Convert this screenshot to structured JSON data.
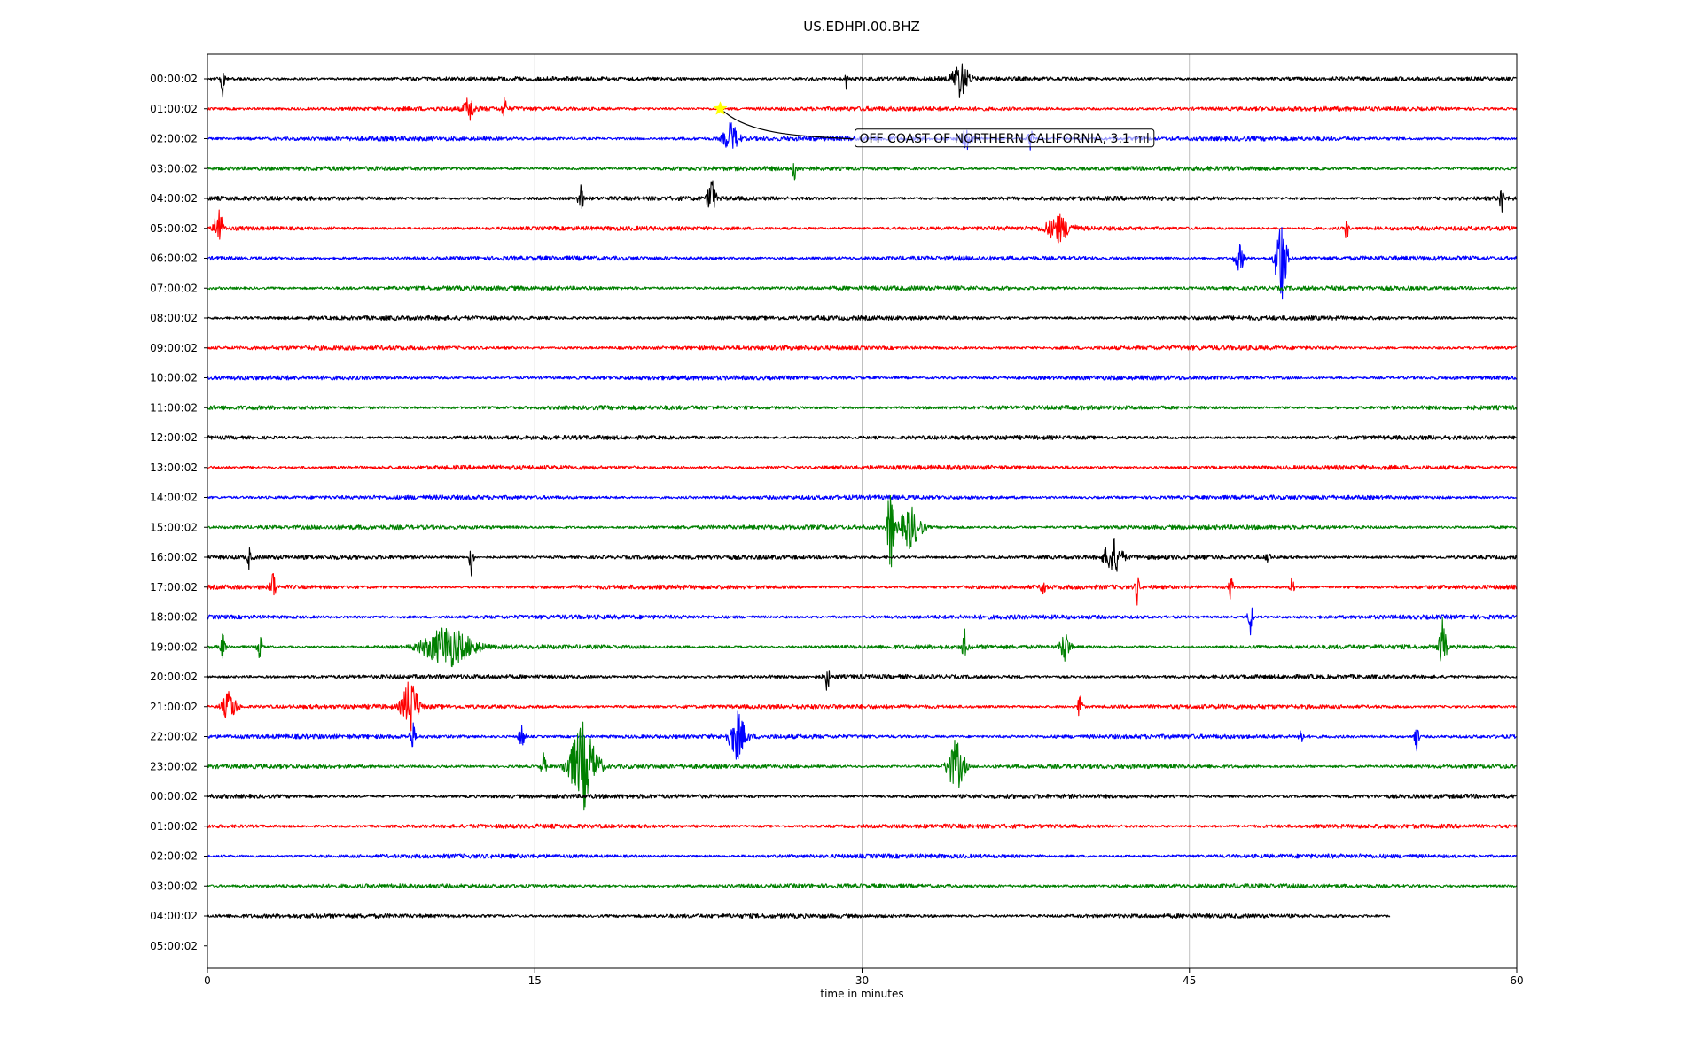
{
  "chart_data": {
    "type": "line",
    "title": "US.EDHPI.00.BHZ",
    "xlabel": "time in minutes",
    "ylabel": "",
    "xlim": [
      0,
      60
    ],
    "x_ticks": [
      0,
      15,
      30,
      45,
      60
    ],
    "grid": "vertical",
    "row_labels": [
      "00:00:02",
      "01:00:02",
      "02:00:02",
      "03:00:02",
      "04:00:02",
      "05:00:02",
      "06:00:02",
      "07:00:02",
      "08:00:02",
      "09:00:02",
      "10:00:02",
      "11:00:02",
      "12:00:02",
      "13:00:02",
      "14:00:02",
      "15:00:02",
      "16:00:02",
      "17:00:02",
      "18:00:02",
      "19:00:02",
      "20:00:02",
      "21:00:02",
      "22:00:02",
      "23:00:02",
      "00:00:02",
      "01:00:02",
      "02:00:02",
      "03:00:02",
      "04:00:02",
      "05:00:02"
    ],
    "trace_colors": [
      "#000000",
      "#ff0000",
      "#0000ff",
      "#008000"
    ],
    "trace_end_minutes": [
      60,
      60,
      60,
      60,
      60,
      60,
      60,
      60,
      60,
      60,
      60,
      60,
      60,
      60,
      60,
      60,
      60,
      60,
      60,
      60,
      60,
      60,
      60,
      60,
      60,
      60,
      60,
      60,
      54.2,
      0
    ],
    "events": [
      {
        "row": 0,
        "minute": 0.7,
        "amp": 0.7,
        "dur": 0.3
      },
      {
        "row": 0,
        "minute": 29.3,
        "amp": 0.6,
        "dur": 0.2
      },
      {
        "row": 0,
        "minute": 34.5,
        "amp": 0.7,
        "dur": 1.3
      },
      {
        "row": 1,
        "minute": 12.0,
        "amp": 0.5,
        "dur": 0.8
      },
      {
        "row": 1,
        "minute": 13.6,
        "amp": 0.6,
        "dur": 0.3
      },
      {
        "row": 2,
        "minute": 24.0,
        "amp": 0.6,
        "dur": 1.2
      },
      {
        "row": 2,
        "minute": 34.8,
        "amp": 0.4,
        "dur": 1.0
      },
      {
        "row": 2,
        "minute": 37.7,
        "amp": 0.5,
        "dur": 0.4
      },
      {
        "row": 3,
        "minute": 26.9,
        "amp": 0.5,
        "dur": 0.3
      },
      {
        "row": 4,
        "minute": 17.1,
        "amp": 0.7,
        "dur": 0.4
      },
      {
        "row": 4,
        "minute": 23.1,
        "amp": 0.9,
        "dur": 0.6
      },
      {
        "row": 4,
        "minute": 59.3,
        "amp": 0.7,
        "dur": 0.3
      },
      {
        "row": 5,
        "minute": 0.5,
        "amp": 1.0,
        "dur": 0.6
      },
      {
        "row": 5,
        "minute": 39.0,
        "amp": 0.5,
        "dur": 2.0
      },
      {
        "row": 5,
        "minute": 52.2,
        "amp": 0.5,
        "dur": 0.3
      },
      {
        "row": 6,
        "minute": 47.3,
        "amp": 0.5,
        "dur": 0.8
      },
      {
        "row": 6,
        "minute": 49.2,
        "amp": 1.9,
        "dur": 0.9
      },
      {
        "row": 15,
        "minute": 31.3,
        "amp": 1.9,
        "dur": 0.5
      },
      {
        "row": 15,
        "minute": 32.2,
        "amp": 0.8,
        "dur": 1.8
      },
      {
        "row": 16,
        "minute": 1.9,
        "amp": 0.4,
        "dur": 0.3
      },
      {
        "row": 16,
        "minute": 12.1,
        "amp": 0.9,
        "dur": 0.3
      },
      {
        "row": 16,
        "minute": 41.5,
        "amp": 0.7,
        "dur": 1.4
      },
      {
        "row": 16,
        "minute": 48.6,
        "amp": 0.4,
        "dur": 0.3
      },
      {
        "row": 17,
        "minute": 3.0,
        "amp": 0.7,
        "dur": 0.4
      },
      {
        "row": 17,
        "minute": 38.3,
        "amp": 0.6,
        "dur": 0.3
      },
      {
        "row": 17,
        "minute": 42.6,
        "amp": 0.7,
        "dur": 0.3
      },
      {
        "row": 17,
        "minute": 46.9,
        "amp": 0.6,
        "dur": 0.3
      },
      {
        "row": 17,
        "minute": 49.7,
        "amp": 0.5,
        "dur": 0.3
      },
      {
        "row": 18,
        "minute": 47.8,
        "amp": 0.7,
        "dur": 0.4
      },
      {
        "row": 19,
        "minute": 0.7,
        "amp": 0.5,
        "dur": 0.4
      },
      {
        "row": 19,
        "minute": 2.4,
        "amp": 0.6,
        "dur": 0.4
      },
      {
        "row": 19,
        "minute": 11.0,
        "amp": 0.8,
        "dur": 4.0
      },
      {
        "row": 19,
        "minute": 34.7,
        "amp": 0.6,
        "dur": 0.4
      },
      {
        "row": 19,
        "minute": 39.3,
        "amp": 0.6,
        "dur": 0.8
      },
      {
        "row": 19,
        "minute": 56.6,
        "amp": 1.0,
        "dur": 0.6
      },
      {
        "row": 20,
        "minute": 28.4,
        "amp": 0.7,
        "dur": 0.3
      },
      {
        "row": 21,
        "minute": 1.0,
        "amp": 0.6,
        "dur": 1.2
      },
      {
        "row": 21,
        "minute": 9.3,
        "amp": 1.1,
        "dur": 1.3
      },
      {
        "row": 21,
        "minute": 40.0,
        "amp": 0.7,
        "dur": 0.4
      },
      {
        "row": 22,
        "minute": 9.4,
        "amp": 0.6,
        "dur": 0.4
      },
      {
        "row": 22,
        "minute": 14.4,
        "amp": 0.5,
        "dur": 0.5
      },
      {
        "row": 22,
        "minute": 24.3,
        "amp": 0.9,
        "dur": 1.3
      },
      {
        "row": 22,
        "minute": 50.1,
        "amp": 0.5,
        "dur": 0.3
      },
      {
        "row": 22,
        "minute": 55.4,
        "amp": 0.6,
        "dur": 0.4
      },
      {
        "row": 23,
        "minute": 15.4,
        "amp": 0.5,
        "dur": 0.4
      },
      {
        "row": 23,
        "minute": 17.2,
        "amp": 1.6,
        "dur": 2.3
      },
      {
        "row": 23,
        "minute": 34.3,
        "amp": 1.0,
        "dur": 1.4
      }
    ],
    "annotation": {
      "text": "OFF COAST OF NORTHERN CALIFORNIA, 3.1 ml",
      "row": 1,
      "minute": 23.5,
      "marker": "star",
      "marker_color": "#ffff00"
    }
  }
}
